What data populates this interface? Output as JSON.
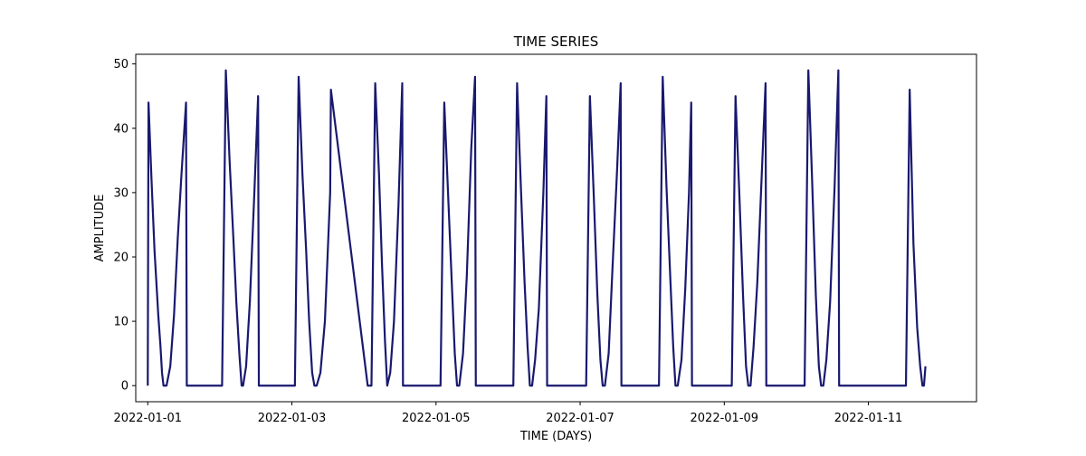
{
  "chart_data": {
    "type": "line",
    "title": "TIME SERIES",
    "xlabel": "TIME (DAYS)",
    "ylabel": "AMPLITUDE",
    "x_tick_labels": [
      "2022-01-01",
      "2022-01-03",
      "2022-01-05",
      "2022-01-07",
      "2022-01-09",
      "2022-01-11"
    ],
    "y_tick_labels": [
      "0",
      "10",
      "20",
      "30",
      "40",
      "50"
    ],
    "xlim": [
      "2021-12-31T20:00",
      "2022-01-12T12:00"
    ],
    "ylim": [
      -2.5,
      51.5
    ],
    "grid": false,
    "legend": "none",
    "line_color": "#191970",
    "series": [
      {
        "x": [
          "2022-01-01T00:00",
          "2022-01-01T00:15",
          "2022-01-01T01:15",
          "2022-01-01T02:15",
          "2022-01-01T03:30",
          "2022-01-01T04:15",
          "2022-01-01T04:45",
          "2022-01-01T05:15",
          "2022-01-01T06:15",
          "2022-01-01T07:30",
          "2022-01-01T08:45",
          "2022-01-01T10:00",
          "2022-01-01T11:15",
          "2022-01-01T12:45",
          "2022-01-01T13:00",
          "2022-01-02T00:45",
          "2022-01-02T02:00",
          "2022-01-02T03:15",
          "2022-01-02T04:30",
          "2022-01-02T05:30",
          "2022-01-02T06:30",
          "2022-01-02T07:15",
          "2022-01-02T07:45",
          "2022-01-02T08:45",
          "2022-01-02T10:00",
          "2022-01-02T11:30",
          "2022-01-02T12:45",
          "2022-01-02T13:00",
          "2022-01-03T01:00",
          "2022-01-03T02:15",
          "2022-01-03T03:30",
          "2022-01-03T04:45",
          "2022-01-03T05:45",
          "2022-01-03T06:45",
          "2022-01-03T07:30",
          "2022-01-03T08:15",
          "2022-01-03T09:30",
          "2022-01-03T11:00",
          "2022-01-03T12:45",
          "2022-01-03T13:00",
          "2022-01-04T01:15",
          "2022-01-04T02:30",
          "2022-01-04T03:45",
          "2022-01-04T05:00",
          "2022-01-04T06:00",
          "2022-01-04T07:00",
          "2022-01-04T07:45",
          "2022-01-04T08:45",
          "2022-01-04T10:00",
          "2022-01-04T11:30",
          "2022-01-04T12:45",
          "2022-01-04T13:00",
          "2022-01-05T01:30",
          "2022-01-05T02:45",
          "2022-01-05T04:00",
          "2022-01-05T05:15",
          "2022-01-05T06:15",
          "2022-01-05T07:00",
          "2022-01-05T07:45",
          "2022-01-05T09:00",
          "2022-01-05T10:15",
          "2022-01-05T11:45",
          "2022-01-05T13:00",
          "2022-01-05T13:15",
          "2022-01-06T01:45",
          "2022-01-06T03:00",
          "2022-01-06T04:15",
          "2022-01-06T05:30",
          "2022-01-06T06:30",
          "2022-01-06T07:15",
          "2022-01-06T08:00",
          "2022-01-06T09:00",
          "2022-01-06T10:15",
          "2022-01-06T11:45",
          "2022-01-06T12:45",
          "2022-01-06T13:00",
          "2022-01-07T02:00",
          "2022-01-07T03:15",
          "2022-01-07T04:30",
          "2022-01-07T05:45",
          "2022-01-07T06:45",
          "2022-01-07T07:30",
          "2022-01-07T08:15",
          "2022-01-07T09:30",
          "2022-01-07T10:45",
          "2022-01-07T12:15",
          "2022-01-07T13:30",
          "2022-01-07T13:45",
          "2022-01-08T02:15",
          "2022-01-08T03:30",
          "2022-01-08T04:45",
          "2022-01-08T06:00",
          "2022-01-08T07:00",
          "2022-01-08T07:45",
          "2022-01-08T08:30",
          "2022-01-08T09:45",
          "2022-01-08T11:00",
          "2022-01-08T12:15",
          "2022-01-08T13:00",
          "2022-01-08T13:15",
          "2022-01-09T02:30",
          "2022-01-09T03:45",
          "2022-01-09T05:00",
          "2022-01-09T06:15",
          "2022-01-09T07:15",
          "2022-01-09T08:00",
          "2022-01-09T08:45",
          "2022-01-09T09:45",
          "2022-01-09T11:00",
          "2022-01-09T12:30",
          "2022-01-09T13:45",
          "2022-01-09T14:00",
          "2022-01-10T02:45",
          "2022-01-10T04:00",
          "2022-01-10T05:15",
          "2022-01-10T06:30",
          "2022-01-10T07:30",
          "2022-01-10T08:15",
          "2022-01-10T09:00",
          "2022-01-10T10:00",
          "2022-01-10T11:15",
          "2022-01-10T12:45",
          "2022-01-10T14:00",
          "2022-01-10T14:15",
          "2022-01-11T12:30",
          "2022-01-11T13:45",
          "2022-01-11T15:00",
          "2022-01-11T16:15",
          "2022-01-11T17:15",
          "2022-01-11T18:00",
          "2022-01-11T18:30",
          "2022-01-11T19:00"
        ],
        "y": [
          0,
          44,
          32,
          21,
          11,
          6,
          2,
          0,
          0,
          3,
          11,
          23,
          33,
          44,
          0,
          0,
          49,
          35,
          23,
          13,
          5,
          0,
          0,
          3,
          13,
          30,
          45,
          0,
          0,
          48,
          33,
          21,
          10,
          2,
          0,
          0,
          2,
          10,
          30,
          46,
          0,
          0,
          47,
          33,
          19,
          7,
          0,
          2,
          10,
          28,
          47,
          0,
          0,
          44,
          30,
          16,
          5,
          0,
          0,
          5,
          17,
          37,
          48,
          0,
          0,
          47,
          31,
          16,
          6,
          0,
          0,
          4,
          12,
          30,
          45,
          0,
          0,
          45,
          30,
          14,
          4,
          0,
          0,
          5,
          18,
          33,
          47,
          0,
          0,
          48,
          31,
          17,
          6,
          0,
          0,
          4,
          15,
          30,
          44,
          0,
          0,
          45,
          30,
          14,
          3,
          0,
          0,
          6,
          16,
          33,
          47,
          0,
          0,
          49,
          32,
          14,
          3,
          0,
          0,
          4,
          13,
          31,
          49,
          0,
          0,
          46,
          22,
          9,
          3,
          0,
          0,
          3
        ]
      }
    ]
  }
}
